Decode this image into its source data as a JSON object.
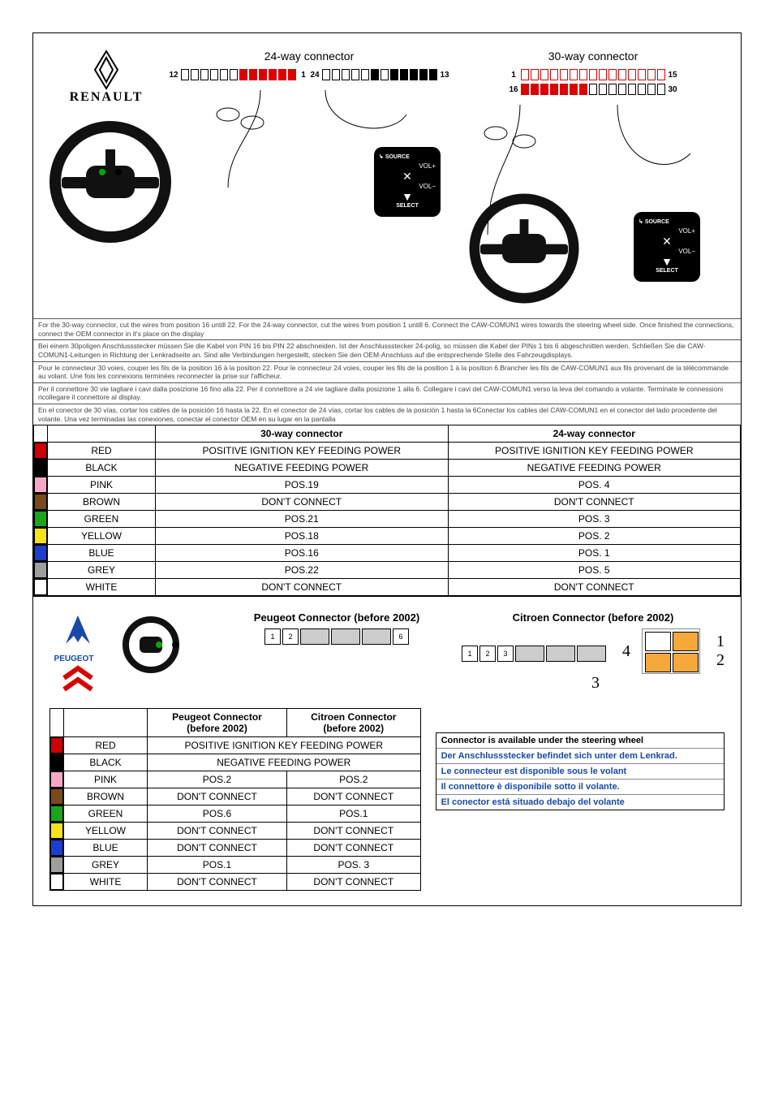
{
  "renault": {
    "brand": "RENAULT",
    "conn24_title": "24-way connector",
    "conn30_title": "30-way connector",
    "pin_labels_24": {
      "tl": "12",
      "tr": "1",
      "bl": "24",
      "br": "13"
    },
    "pin_labels_30": {
      "tl": "1",
      "tr": "15",
      "bl": "16",
      "br": "30"
    },
    "joy": {
      "source": "SOURCE",
      "volp": "VOL+",
      "volm": "VOL−",
      "mute": "✕",
      "select": "SELECT"
    },
    "instructions": [
      "For the 30-way connector, cut the wires from position 16 untill 22. For the 24-way connector, cut the wires from position 1 untill 6.\nConnect the CAW-COMUN1 wires towards the steering wheel side. Once finished the connections, connect the OEM connector in it's place on the display",
      "Bei einem 30poligen Anschlussstecker müssen Sie die Kabel von PIN 16 bis PIN 22 abschneiden. Ist der Anschlussstecker 24-polig, so müssen die Kabel der PINs 1 bis 6 abgeschnitten werden. Schließen Sie die CAW-COMUN1-Leitungen in Richtung der Lenkradseite an. Sind alle Verbindungen hergestellt, stecken Sie den OEM-Anschluss auf die entsprechende Stelle des Fahrzeugdisplays.",
      "Pour le connecteur 30 voies, couper les fils de la position 16 à la position 22. Pour le connecteur 24 voies, couper les fils de la position 1 à la position 6.Brancher les fils de CAW-COMUN1 aux fils provenant de la télécommande au volant. Une fois les connexions terminées reconnecter la prise sur l'afficheur.",
      "Per il connettore 30 vie tagliare i cavi dalla posizione 16 fino alla 22. Per il connettore a 24 vie tagliare dalla posizione 1 alla 6.\nCollegare i cavi del CAW-COMUN1 verso la leva del comando a volante. Terminate le connessioni ricollegare il connettore al display.",
      "En el conector de 30 vías, cortar los cables de la posición 16 hasta la 22. En el conector de 24 vías, cortar los cables de la posición 1 hasta la 6Conectar los cables del CAW-COMUN1 en el conector del lado procedente del volante. Una vez terminadas las conexiones, conectar el conector OEM en su lugar en la pantalla"
    ],
    "table": {
      "head30": "30-way connector",
      "head24": "24-way connector",
      "rows": [
        {
          "sw": "#d00000",
          "name": "RED",
          "c30": "POSITIVE IGNITION KEY FEEDING POWER",
          "c24": "POSITIVE IGNITION KEY FEEDING POWER"
        },
        {
          "sw": "#000000",
          "name": "BLACK",
          "c30": "NEGATIVE FEEDING POWER",
          "c24": "NEGATIVE FEEDING POWER"
        },
        {
          "sw": "#f7a7c4",
          "name": "PINK",
          "c30": "POS.19",
          "c24": "POS. 4"
        },
        {
          "sw": "#7a4a1a",
          "name": "BROWN",
          "c30": "DON'T CONNECT",
          "c24": "DON'T CONNECT"
        },
        {
          "sw": "#1aa51a",
          "name": "GREEN",
          "c30": "POS.21",
          "c24": "POS. 3"
        },
        {
          "sw": "#f7e11a",
          "name": "YELLOW",
          "c30": "POS.18",
          "c24": "POS. 2"
        },
        {
          "sw": "#1a3fd0",
          "name": "BLUE",
          "c30": "POS.16",
          "c24": "POS. 1"
        },
        {
          "sw": "#9e9e9e",
          "name": "GREY",
          "c30": "POS.22",
          "c24": "POS. 5"
        },
        {
          "sw": "#ffffff",
          "name": "WHITE",
          "c30": "DON'T CONNECT",
          "c24": "DON'T CONNECT"
        }
      ]
    }
  },
  "psa": {
    "brand1": "PEUGEOT",
    "peugeot_title": "Peugeot Connector (before 2002)",
    "citroen_title": "Citroen Connector (before 2002)",
    "peugeot_pins": [
      "1",
      "2",
      "",
      "",
      "",
      "6"
    ],
    "citroen_pins": [
      "1",
      "2",
      "3"
    ],
    "cit_side": {
      "n1": "1",
      "n2": "2",
      "n3": "3",
      "n4": "4"
    },
    "table": {
      "head_p": "Peugeot Connector\n(before 2002)",
      "head_c": "Citroen Connector\n(before 2002)",
      "rows": [
        {
          "sw": "#d00000",
          "name": "RED",
          "merged": "POSITIVE IGNITION KEY FEEDING POWER"
        },
        {
          "sw": "#000000",
          "name": "BLACK",
          "merged": "NEGATIVE FEEDING POWER"
        },
        {
          "sw": "#f7a7c4",
          "name": "PINK",
          "p": "POS.2",
          "c": "POS.2"
        },
        {
          "sw": "#7a4a1a",
          "name": "BROWN",
          "p": "DON'T CONNECT",
          "c": "DON'T CONNECT"
        },
        {
          "sw": "#1aa51a",
          "name": "GREEN",
          "p": "POS.6",
          "c": "POS.1"
        },
        {
          "sw": "#f7e11a",
          "name": "YELLOW",
          "p": "DON'T CONNECT",
          "c": "DON'T CONNECT"
        },
        {
          "sw": "#1a3fd0",
          "name": "BLUE",
          "p": "DON'T CONNECT",
          "c": "DON'T CONNECT"
        },
        {
          "sw": "#9e9e9e",
          "name": "GREY",
          "p": "POS.1",
          "c": "POS. 3"
        },
        {
          "sw": "#ffffff",
          "name": "WHITE",
          "p": "DON'T CONNECT",
          "c": "DON'T CONNECT"
        }
      ]
    },
    "notes": [
      {
        "txt": "Connector is available under the steering wheel",
        "col": "#000"
      },
      {
        "txt": "Der Anschlussstecker befindet sich unter dem Lenkrad.",
        "col": "#1849a9"
      },
      {
        "txt": "Le connecteur est disponible sous le volant",
        "col": "#1849a9"
      },
      {
        "txt": "Il connettore è disponibile sotto il volante.",
        "col": "#1849a9"
      },
      {
        "txt": "El conector está situado debajo del volante",
        "col": "#1849a9"
      }
    ]
  }
}
